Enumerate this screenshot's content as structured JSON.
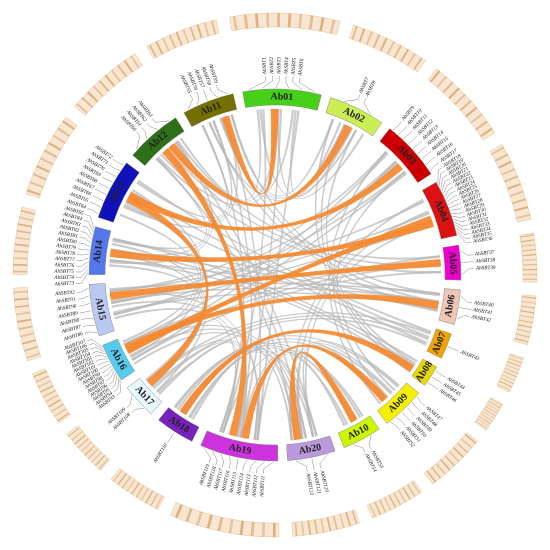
{
  "figure": {
    "chromosomes": [
      {
        "name": "Ab01",
        "color": "#46d017",
        "span": 18
      },
      {
        "name": "Ab02",
        "color": "#ccee55",
        "span": 13
      },
      {
        "name": "Ab03",
        "color": "#cc0000",
        "span": 14
      },
      {
        "name": "Ab04",
        "color": "#dd1111",
        "span": 13
      },
      {
        "name": "Ab05",
        "color": "#ee00cc",
        "span": 8
      },
      {
        "name": "Ab06",
        "color": "#f2c6b5",
        "span": 8
      },
      {
        "name": "Ab07",
        "color": "#f2a400",
        "span": 6
      },
      {
        "name": "Ab08",
        "color": "#e6d800",
        "span": 5
      },
      {
        "name": "Ab09",
        "color": "#f4f000",
        "span": 10
      },
      {
        "name": "Ab10",
        "color": "#ccf500",
        "span": 9
      },
      {
        "name": "Ab20",
        "color": "#bb99dd",
        "span": 11
      },
      {
        "name": "Ab19",
        "color": "#cc33dd",
        "span": 18
      },
      {
        "name": "Ab18",
        "color": "#7722bb",
        "span": 9
      },
      {
        "name": "Ab17",
        "color": "#e8f8ff",
        "span": 8
      },
      {
        "name": "Ab16",
        "color": "#55ccee",
        "span": 9
      },
      {
        "name": "Ab15",
        "color": "#b9c9f2",
        "span": 12
      },
      {
        "name": "Ab14",
        "color": "#5577ee",
        "span": 11
      },
      {
        "name": "Ab13",
        "color": "#1111bb",
        "span": 14
      },
      {
        "name": "Ab12",
        "color": "#2e6f1a",
        "span": 13
      },
      {
        "name": "Ab11",
        "color": "#747000",
        "span": 12
      }
    ],
    "genes": [
      {
        "chrom": "Ab01",
        "labels": [
          "AhSBT1",
          "AhSBT2",
          "AhSBT3",
          "AhSBT4",
          "AhSBT5",
          "AhSBT6"
        ]
      },
      {
        "chrom": "Ab02",
        "labels": [
          "AhSBT7",
          "AhSBT8"
        ]
      },
      {
        "chrom": "Ab03",
        "labels": [
          "AhSBT9",
          "AhSBT10",
          "AhSBT11",
          "AhSBT12",
          "AhSBT13",
          "AhSBT14",
          "AhSBT15",
          "AhSBT16",
          "AhSBT17"
        ]
      },
      {
        "chrom": "Ab04",
        "labels": [
          "AhSBT18",
          "AhSBT19",
          "AhSBT20",
          "AhSBT21",
          "AhSBT22",
          "AhSBT23",
          "AhSBT24",
          "AhSBT25",
          "AhSBT26",
          "AhSBT27",
          "AhSBT28",
          "AhSBT29",
          "AhSBT30",
          "AhSBT31",
          "AhSBT32",
          "AhSBT33",
          "AhSBT34",
          "AhSBT35",
          "AhSBT36"
        ]
      },
      {
        "chrom": "Ab05",
        "labels": [
          "AhSBT37",
          "AhSBT38",
          "AhSBT39"
        ]
      },
      {
        "chrom": "Ab06",
        "labels": [
          "AhSBT40",
          "AhSBT41",
          "AhSBT42"
        ]
      },
      {
        "chrom": "Ab07",
        "labels": [
          "AhSBT43"
        ]
      },
      {
        "chrom": "Ab08",
        "labels": [
          "AhSBT44",
          "AhSBT45",
          "AhSBT46"
        ]
      },
      {
        "chrom": "Ab09",
        "labels": [
          "AhSBT47",
          "AhSBT48",
          "AhSBT49",
          "AhSBT50",
          "AhSBT51",
          "AhSBT52"
        ]
      },
      {
        "chrom": "Ab10",
        "labels": [
          "AhSBT53",
          "AhSBT54"
        ]
      },
      {
        "chrom": "Ab20",
        "labels": [
          "AhSBT120",
          "AhSBT121",
          "AhSBT122"
        ]
      },
      {
        "chrom": "Ab19",
        "labels": [
          "AhSBT111",
          "AhSBT112",
          "AhSBT113",
          "AhSBT114",
          "AhSBT115",
          "AhSBT116",
          "AhSBT117",
          "AhSBT118",
          "AhSBT119"
        ]
      },
      {
        "chrom": "Ab18",
        "labels": [
          "AhSBT110"
        ]
      },
      {
        "chrom": "Ab17",
        "labels": [
          "AhSBT108",
          "AhSBT109"
        ]
      },
      {
        "chrom": "Ab16",
        "labels": [
          "AhSBT93",
          "AhSBT94",
          "AhSBT95",
          "AhSBT96",
          "AhSBT97",
          "AhSBT98",
          "AhSBT99",
          "AhSBT100",
          "AhSBT101",
          "AhSBT102",
          "AhSBT103",
          "AhSBT104",
          "AhSBT105",
          "AhSBT106",
          "AhSBT107"
        ]
      },
      {
        "chrom": "Ab15",
        "labels": [
          "AhSBT86",
          "AhSBT87",
          "AhSBT88",
          "AhSBT89",
          "AhSBT90",
          "AhSBT91",
          "AhSBT92"
        ]
      },
      {
        "chrom": "Ab14",
        "labels": [
          "AhSBT73",
          "AhSBT74",
          "AhSBT75",
          "AhSBT76",
          "AhSBT77",
          "AhSBT78",
          "AhSBT79",
          "AhSBT80",
          "AhSBT81",
          "AhSBT82",
          "AhSBT83",
          "AhSBT84",
          "AhSBT85"
        ]
      },
      {
        "chrom": "Ab13",
        "labels": [
          "AhSBT64",
          "AhSBT65",
          "AhSBT66",
          "AhSBT67",
          "AhSBT68",
          "AhSBT69",
          "AhSBT70",
          "AhSBT71",
          "AhSBT72"
        ]
      },
      {
        "chrom": "Ab12",
        "labels": [
          "AhSBT60",
          "AhSBT61",
          "AhSBT62",
          "AhSBT63"
        ]
      },
      {
        "chrom": "Ab11",
        "labels": [
          "AhSBT55",
          "AhSBT56",
          "AhSBT57",
          "AhSBT58",
          "AhSBT59"
        ]
      }
    ],
    "highlighted_links": [
      [
        "Ab01",
        "Ab11"
      ],
      [
        "Ab02",
        "Ab12"
      ],
      [
        "Ab03",
        "Ab13"
      ],
      [
        "Ab04",
        "Ab14"
      ],
      [
        "Ab05",
        "Ab15"
      ],
      [
        "Ab06",
        "Ab16"
      ],
      [
        "Ab08",
        "Ab18"
      ],
      [
        "Ab09",
        "Ab19"
      ],
      [
        "Ab10",
        "Ab20"
      ],
      [
        "Ab13",
        "Ab17"
      ],
      [
        "Ab04",
        "Ab16"
      ],
      [
        "Ab19",
        "Ab12"
      ]
    ],
    "background_links": [
      [
        "Ab01",
        "Ab12"
      ],
      [
        "Ab01",
        "Ab02"
      ],
      [
        "Ab01",
        "Ab19"
      ],
      [
        "Ab02",
        "Ab11"
      ],
      [
        "Ab03",
        "Ab15"
      ],
      [
        "Ab03",
        "Ab16"
      ],
      [
        "Ab04",
        "Ab20"
      ],
      [
        "Ab04",
        "Ab15"
      ],
      [
        "Ab05",
        "Ab16"
      ],
      [
        "Ab06",
        "Ab15"
      ],
      [
        "Ab06",
        "Ab14"
      ],
      [
        "Ab07",
        "Ab17"
      ],
      [
        "Ab09",
        "Ab20"
      ],
      [
        "Ab09",
        "Ab18"
      ],
      [
        "Ab10",
        "Ab19"
      ],
      [
        "Ab10",
        "Ab18"
      ],
      [
        "Ab11",
        "Ab13"
      ],
      [
        "Ab12",
        "Ab14"
      ],
      [
        "Ab13",
        "Ab16"
      ],
      [
        "Ab14",
        "Ab17"
      ],
      [
        "Ab15",
        "Ab19"
      ],
      [
        "Ab16",
        "Ab20"
      ],
      [
        "Ab17",
        "Ab19"
      ],
      [
        "Ab18",
        "Ab20"
      ],
      [
        "Ab02",
        "Ab08"
      ],
      [
        "Ab03",
        "Ab09"
      ],
      [
        "Ab05",
        "Ab12"
      ],
      [
        "Ab07",
        "Ab13"
      ],
      [
        "Ab11",
        "Ab19"
      ],
      [
        "Ab12",
        "Ab20"
      ],
      [
        "Ab06",
        "Ab11"
      ],
      [
        "Ab08",
        "Ab14"
      ]
    ],
    "colors": {
      "highlight_link": "#f5892f",
      "background_link": "#b8b8b8",
      "density_track": "#d79a5c",
      "label_leader": "#333333"
    }
  }
}
